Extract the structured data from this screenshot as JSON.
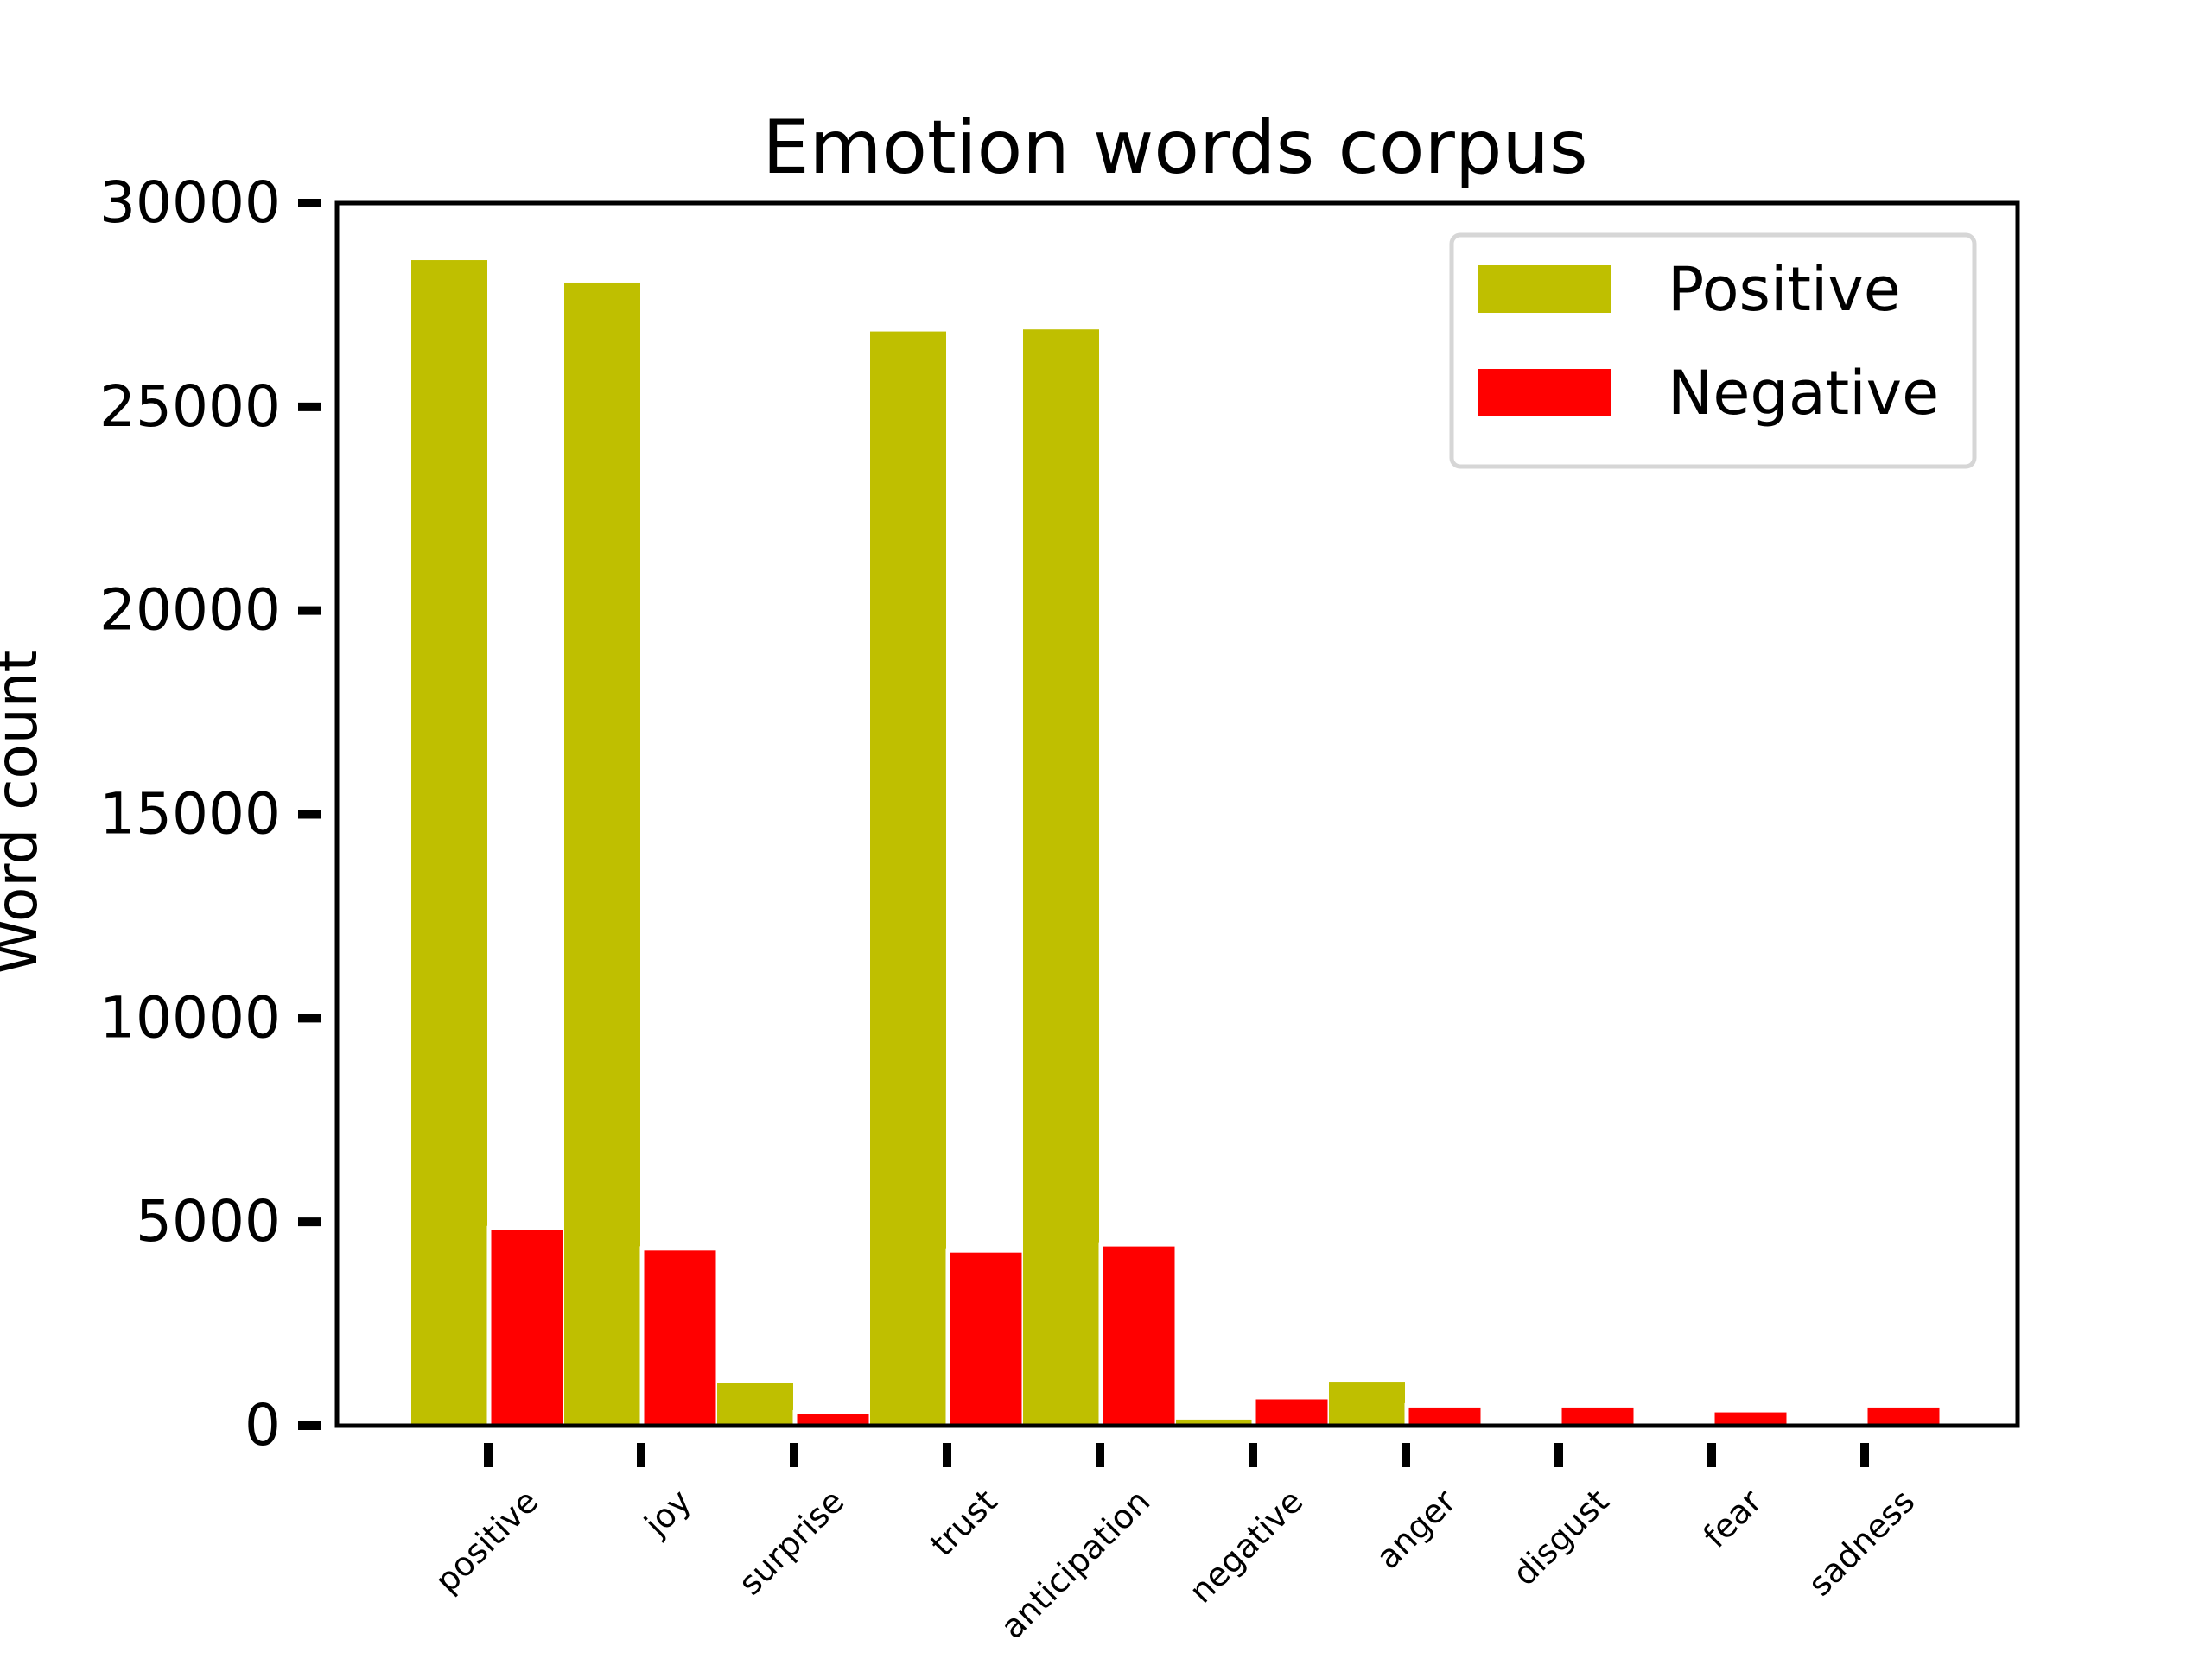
{
  "chart_data": {
    "type": "bar",
    "title": "Emotion words corpus",
    "xlabel": "",
    "ylabel": "Word count",
    "categories": [
      "positive",
      "joy",
      "surprise",
      "trust",
      "anticipation",
      "negative",
      "anger",
      "disgust",
      "fear",
      "sadness"
    ],
    "series": [
      {
        "name": "Positive",
        "color": "#bfbf00",
        "values": [
          28600,
          28050,
          1050,
          26850,
          26900,
          150,
          1080,
          0,
          0,
          0
        ]
      },
      {
        "name": "Negative",
        "color": "#ff0000",
        "values": [
          4850,
          4350,
          330,
          4300,
          4450,
          700,
          500,
          500,
          380,
          500
        ]
      }
    ],
    "yticks": [
      0,
      5000,
      10000,
      15000,
      20000,
      25000,
      30000
    ],
    "ylim": [
      0,
      30000
    ],
    "legend": "top-right",
    "grid": false
  }
}
